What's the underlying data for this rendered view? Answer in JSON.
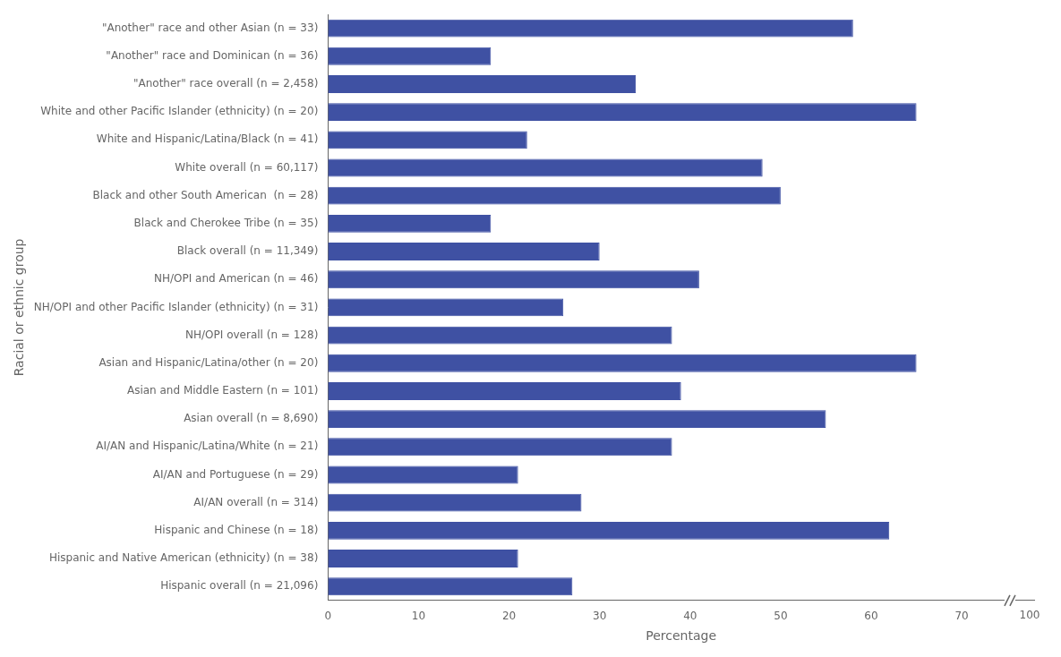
{
  "chart_data": {
    "type": "bar",
    "orientation": "horizontal",
    "categories": [
      "\"Another\" race and other Asian (n = 33)",
      "\"Another\" race and Dominican (n = 36)",
      "\"Another\" race overall (n = 2,458)",
      "White and other Pacific Islander (ethnicity) (n = 20)",
      "White and Hispanic/Latina/Black (n = 41)",
      "White overall (n = 60,117)",
      "Black and other South American  (n = 28)",
      "Black and Cherokee Tribe (n = 35)",
      "Black overall (n = 11,349)",
      "NH/OPI and American (n = 46)",
      "NH/OPI and other Pacific Islander (ethnicity) (n = 31)",
      "NH/OPI overall (n = 128)",
      "Asian and Hispanic/Latina/other (n = 20)",
      "Asian and Middle Eastern (n = 101)",
      "Asian overall (n = 8,690)",
      "AI/AN and Hispanic/Latina/White (n = 21)",
      "AI/AN and Portuguese (n = 29)",
      "AI/AN overall (n = 314)",
      "Hispanic and Chinese (n = 18)",
      "Hispanic and Native American (ethnicity) (n = 38)",
      "Hispanic overall (n = 21,096)"
    ],
    "values": [
      58,
      18,
      34,
      65,
      22,
      48,
      50,
      18,
      30,
      41,
      26,
      38,
      65,
      39,
      55,
      38,
      21,
      28,
      62,
      21,
      27
    ],
    "color": "#3F51A3",
    "xlabel": "Percentage",
    "ylabel": "Racial or ethnic group",
    "xlim": [
      0,
      78
    ],
    "xticks": [
      0,
      10,
      20,
      30,
      40,
      50,
      60,
      70
    ],
    "annotations": [
      {
        "text": "100",
        "x": 77.5
      }
    ],
    "grid": false
  }
}
